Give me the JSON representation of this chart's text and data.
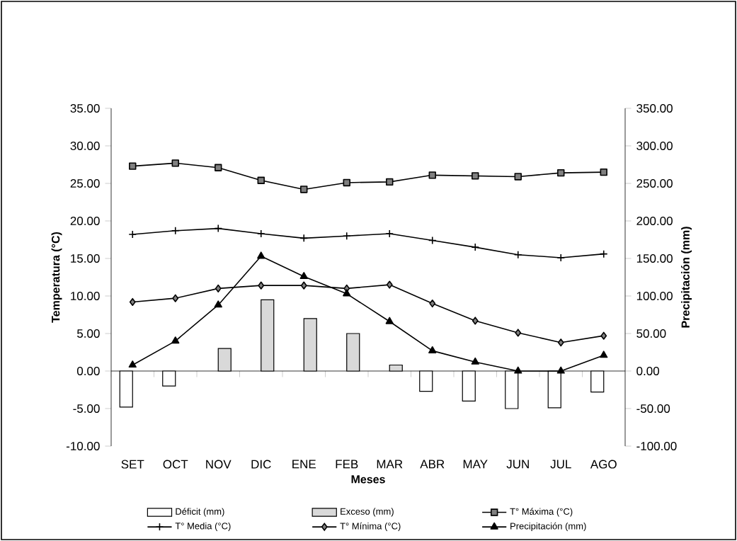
{
  "chart_data": {
    "type": "line",
    "xlabel": "Meses",
    "ylabel": "Temperatura (°C)",
    "y2label": "Precipitación (mm)",
    "categories": [
      "SET",
      "OCT",
      "NOV",
      "DIC",
      "ENE",
      "FEB",
      "MAR",
      "ABR",
      "MAY",
      "JUN",
      "JUL",
      "AGO"
    ],
    "series": [
      {
        "name": "Déficit (mm)",
        "type": "bar",
        "axis": "y2",
        "color": "#ffffff",
        "values": [
          -48,
          -20,
          null,
          null,
          null,
          null,
          null,
          -27,
          -40,
          -50,
          -49,
          -28
        ]
      },
      {
        "name": "Exceso (mm)",
        "type": "bar",
        "axis": "y2",
        "color": "#d9d9d9",
        "values": [
          null,
          null,
          30,
          95,
          70,
          50,
          8,
          null,
          null,
          null,
          null,
          null
        ]
      },
      {
        "name": "T° Máxima (°C)",
        "marker": "square",
        "color": "#000000",
        "values": [
          27.3,
          27.7,
          27.1,
          25.4,
          24.2,
          25.1,
          25.2,
          26.1,
          26.0,
          25.9,
          26.4,
          26.5
        ]
      },
      {
        "name": "T° Media (°C)",
        "marker": "cross",
        "color": "#000000",
        "values": [
          18.2,
          18.7,
          19.0,
          18.3,
          17.7,
          18.0,
          18.3,
          17.4,
          16.5,
          15.5,
          15.1,
          15.6
        ]
      },
      {
        "name": "T° Mínima (°C)",
        "marker": "diamond",
        "color": "#000000",
        "values": [
          9.2,
          9.7,
          11.0,
          11.4,
          11.4,
          11.0,
          11.5,
          9.0,
          6.7,
          5.1,
          3.8,
          4.7
        ]
      },
      {
        "name": "Precipitación (mm)",
        "axis": "y2",
        "marker": "triangle",
        "color": "#000000",
        "values": [
          8,
          40,
          88,
          153,
          126,
          103,
          66,
          27,
          12,
          0,
          0,
          21
        ]
      }
    ],
    "ylim": [
      -10,
      35
    ],
    "yticks": [
      {
        "value": -10,
        "label": "-10.00"
      },
      {
        "value": -5,
        "label": "-5.00"
      },
      {
        "value": 0,
        "label": "0.00"
      },
      {
        "value": 5,
        "label": "5.00"
      },
      {
        "value": 10,
        "label": "10.00"
      },
      {
        "value": 15,
        "label": "15.00"
      },
      {
        "value": 20,
        "label": "20.00"
      },
      {
        "value": 25,
        "label": "25.00"
      },
      {
        "value": 30,
        "label": "30.00"
      },
      {
        "value": 35,
        "label": "35.00"
      }
    ],
    "y2lim": [
      -100,
      350
    ],
    "y2ticks": [
      {
        "value": -100,
        "label": "-100.00"
      },
      {
        "value": -50,
        "label": "-50.00"
      },
      {
        "value": 0,
        "label": "0.00"
      },
      {
        "value": 50,
        "label": "50.00"
      },
      {
        "value": 100,
        "label": "100.00"
      },
      {
        "value": 150,
        "label": "150.00"
      },
      {
        "value": 200,
        "label": "200.00"
      },
      {
        "value": 250,
        "label": "250.00"
      },
      {
        "value": 300,
        "label": "300.00"
      },
      {
        "value": 350,
        "label": "350.00"
      }
    ],
    "legend": "bottom"
  }
}
